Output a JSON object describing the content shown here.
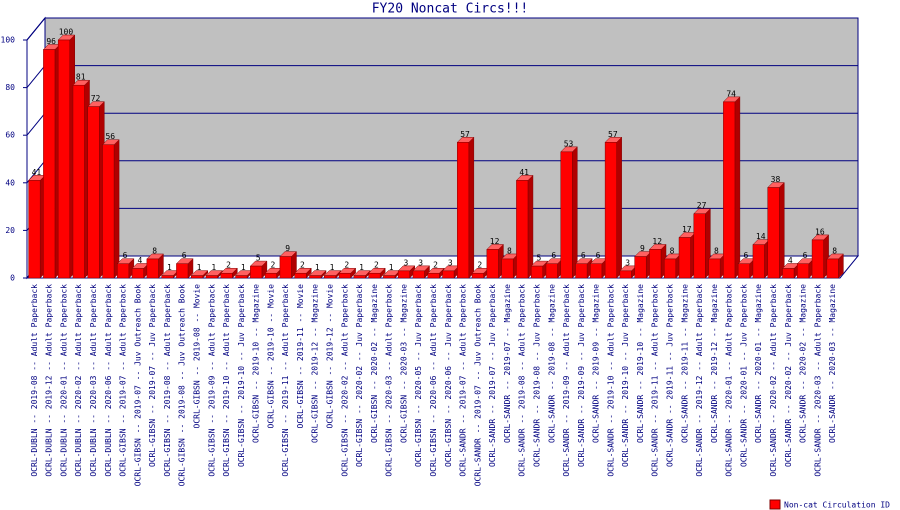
{
  "chart_data": {
    "type": "bar",
    "title": "FY20 Noncat Circs!!!",
    "categories": [
      "OCRL-DUBLN -- 2019-08 -- Adult Paperback",
      "OCRL-DUBLN -- 2019-12 -- Adult Paperback",
      "OCRL-DUBLN -- 2020-01 -- Adult Paperback",
      "OCRL-DUBLN -- 2020-02 -- Adult Paperback",
      "OCRL-DUBLN -- 2020-03 -- Adult Paperback",
      "OCRL-DUBLN -- 2020-06 -- Adult Paperback",
      "OCRL-GIBSN -- 2019-07 -- Adult Paperback",
      "OCRL-GIBSN -- 2019-07 -- Juv Outreach Book",
      "OCRL-GIBSN -- 2019-07 -- Juv Paperback",
      "OCRL-GIBSN -- 2019-08 -- Adult Paperback",
      "OCRL-GIBSN -- 2019-08 -- Juv Outreach Book",
      "OCRL-GIBSN -- 2019-08 -- Movie",
      "OCRL-GIBSN -- 2019-09 -- Adult Paperback",
      "OCRL-GIBSN -- 2019-10 -- Adult Paperback",
      "OCRL-GIBSN -- 2019-10 -- Juv Paperback",
      "OCRL-GIBSN -- 2019-10 -- Magazine",
      "OCRL-GIBSN -- 2019-10 -- Movie",
      "OCRL-GIBSN -- 2019-11 -- Adult Paperback",
      "OCRL-GIBSN -- 2019-11 -- Movie",
      "OCRL-GIBSN -- 2019-12 -- Magazine",
      "OCRL-GIBSN -- 2019-12 -- Movie",
      "OCRL-GIBSN -- 2020-02 -- Adult Paperback",
      "OCRL-GIBSN -- 2020-02 -- Juv Paperback",
      "OCRL-GIBSN -- 2020-02 -- Magazine",
      "OCRL-GIBSN -- 2020-03 -- Adult Paperback",
      "OCRL-GIBSN -- 2020-03 -- Magazine",
      "OCRL-GIBSN -- 2020-05 -- Juv Paperback",
      "OCRL-GIBSN -- 2020-06 -- Adult Paperback",
      "OCRL-GIBSN -- 2020-06 -- Juv Paperback",
      "OCRL-SANDR -- 2019-07 -- Adult Paperback",
      "OCRL-SANDR -- 2019-07 -- Juv Outreach Book",
      "OCRL-SANDR -- 2019-07 -- Juv Paperback",
      "OCRL-SANDR -- 2019-07 -- Magazine",
      "OCRL-SANDR -- 2019-08 -- Adult Paperback",
      "OCRL-SANDR -- 2019-08 -- Juv Paperback",
      "OCRL-SANDR -- 2019-08 -- Magazine",
      "OCRL-SANDR -- 2019-09 -- Adult Paperback",
      "OCRL-SANDR -- 2019-09 -- Juv Paperback",
      "OCRL-SANDR -- 2019-09 -- Magazine",
      "OCRL-SANDR -- 2019-10 -- Adult Paperback",
      "OCRL-SANDR -- 2019-10 -- Juv Paperback",
      "OCRL-SANDR -- 2019-10 -- Magazine",
      "OCRL-SANDR -- 2019-11 -- Adult Paperback",
      "OCRL-SANDR -- 2019-11 -- Juv Paperback",
      "OCRL-SANDR -- 2019-11 -- Magazine",
      "OCRL-SANDR -- 2019-12 -- Adult Paperback",
      "OCRL-SANDR -- 2019-12 -- Magazine",
      "OCRL-SANDR -- 2020-01 -- Adult Paperback",
      "OCRL-SANDR -- 2020-01 -- Juv Paperback",
      "OCRL-SANDR -- 2020-01 -- Magazine",
      "OCRL-SANDR -- 2020-02 -- Adult Paperback",
      "OCRL-SANDR -- 2020-02 -- Juv Paperback",
      "OCRL-SANDR -- 2020-02 -- Magazine",
      "OCRL-SANDR -- 2020-03 -- Adult Paperback",
      "OCRL-SANDR -- 2020-03 -- Magazine"
    ],
    "series": [
      {
        "name": "Non-cat Circulation ID",
        "color": "#ff0000",
        "values": [
          41,
          96,
          100,
          81,
          72,
          56,
          6,
          4,
          8,
          1,
          6,
          1,
          1,
          2,
          1,
          5,
          2,
          9,
          2,
          1,
          1,
          2,
          1,
          2,
          1,
          3,
          3,
          2,
          3,
          57,
          2,
          12,
          8,
          41,
          5,
          6,
          53,
          6,
          6,
          57,
          3,
          9,
          12,
          8,
          17,
          27,
          8,
          74,
          6,
          14,
          38,
          4,
          6,
          16,
          8
        ]
      }
    ],
    "ylim": [
      0,
      100
    ],
    "yticks": [
      0,
      20,
      40,
      60,
      80,
      100
    ],
    "grid": true,
    "legend": "bottom-right"
  }
}
